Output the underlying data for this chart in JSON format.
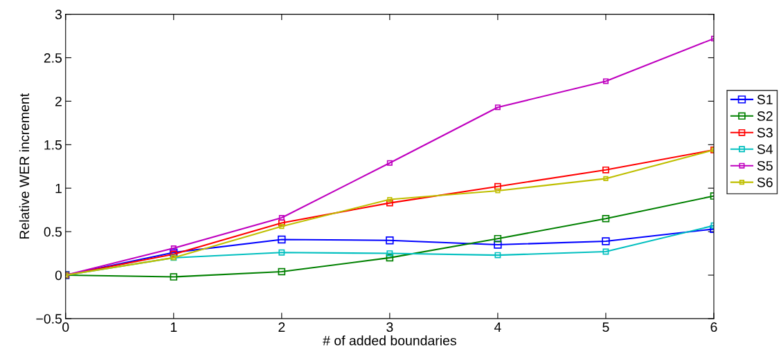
{
  "chart_data": {
    "type": "line",
    "xlabel": "# of added boundaries",
    "ylabel": "Relative WER increment",
    "x": [
      0,
      1,
      2,
      3,
      4,
      5,
      6
    ],
    "series": [
      {
        "name": "S1",
        "color": "#0000ff",
        "values": [
          0,
          0.26,
          0.41,
          0.4,
          0.35,
          0.39,
          0.53
        ]
      },
      {
        "name": "S2",
        "color": "#008000",
        "values": [
          0,
          -0.02,
          0.04,
          0.2,
          0.42,
          0.65,
          0.91
        ]
      },
      {
        "name": "S3",
        "color": "#ff0000",
        "values": [
          0,
          0.24,
          0.6,
          0.83,
          1.02,
          1.21,
          1.44
        ]
      },
      {
        "name": "S4",
        "color": "#00bfbf",
        "values": [
          0,
          0.2,
          0.26,
          0.25,
          0.23,
          0.27,
          0.57
        ]
      },
      {
        "name": "S5",
        "color": "#bf00bf",
        "values": [
          0,
          0.31,
          0.66,
          1.29,
          1.93,
          2.23,
          2.72
        ]
      },
      {
        "name": "S6",
        "color": "#bfbf00",
        "values": [
          0,
          0.2,
          0.56,
          0.87,
          0.97,
          1.11,
          1.44
        ]
      }
    ],
    "xlim": [
      0,
      6
    ],
    "xticks": [
      0,
      1,
      2,
      3,
      4,
      5,
      6
    ],
    "ylim": [
      -0.5,
      3
    ],
    "yticks": [
      {
        "value": -0.5,
        "label": "−0.5"
      },
      0,
      0.5,
      1,
      1.5,
      2,
      2.5,
      3
    ],
    "grid": false,
    "legend": "right",
    "marker": "square",
    "line_style": "solid"
  }
}
